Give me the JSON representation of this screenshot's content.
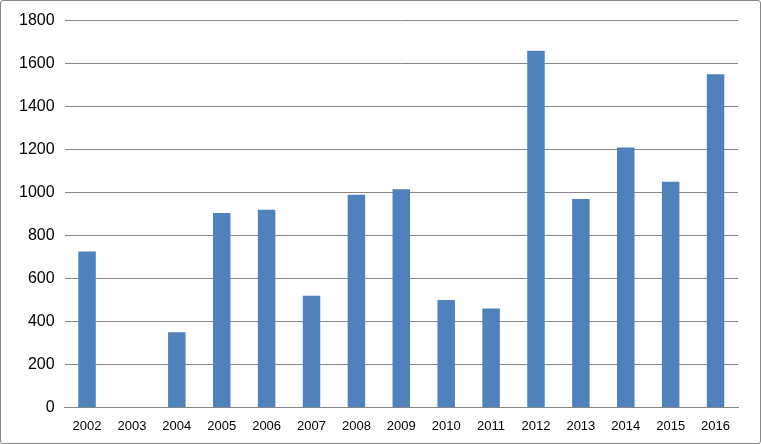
{
  "chart_data": {
    "type": "bar",
    "categories": [
      "2002",
      "2003",
      "2004",
      "2005",
      "2006",
      "2007",
      "2008",
      "2009",
      "2010",
      "2011",
      "2012",
      "2013",
      "2014",
      "2015",
      "2016"
    ],
    "values": [
      725,
      0,
      350,
      905,
      920,
      520,
      990,
      1015,
      500,
      460,
      1660,
      970,
      1210,
      1050,
      1550
    ],
    "color": "#4f81bd",
    "ylim": [
      0,
      1800
    ],
    "yticks": [
      0,
      200,
      400,
      600,
      800,
      1000,
      1200,
      1400,
      1600,
      1800
    ],
    "grid": true
  }
}
